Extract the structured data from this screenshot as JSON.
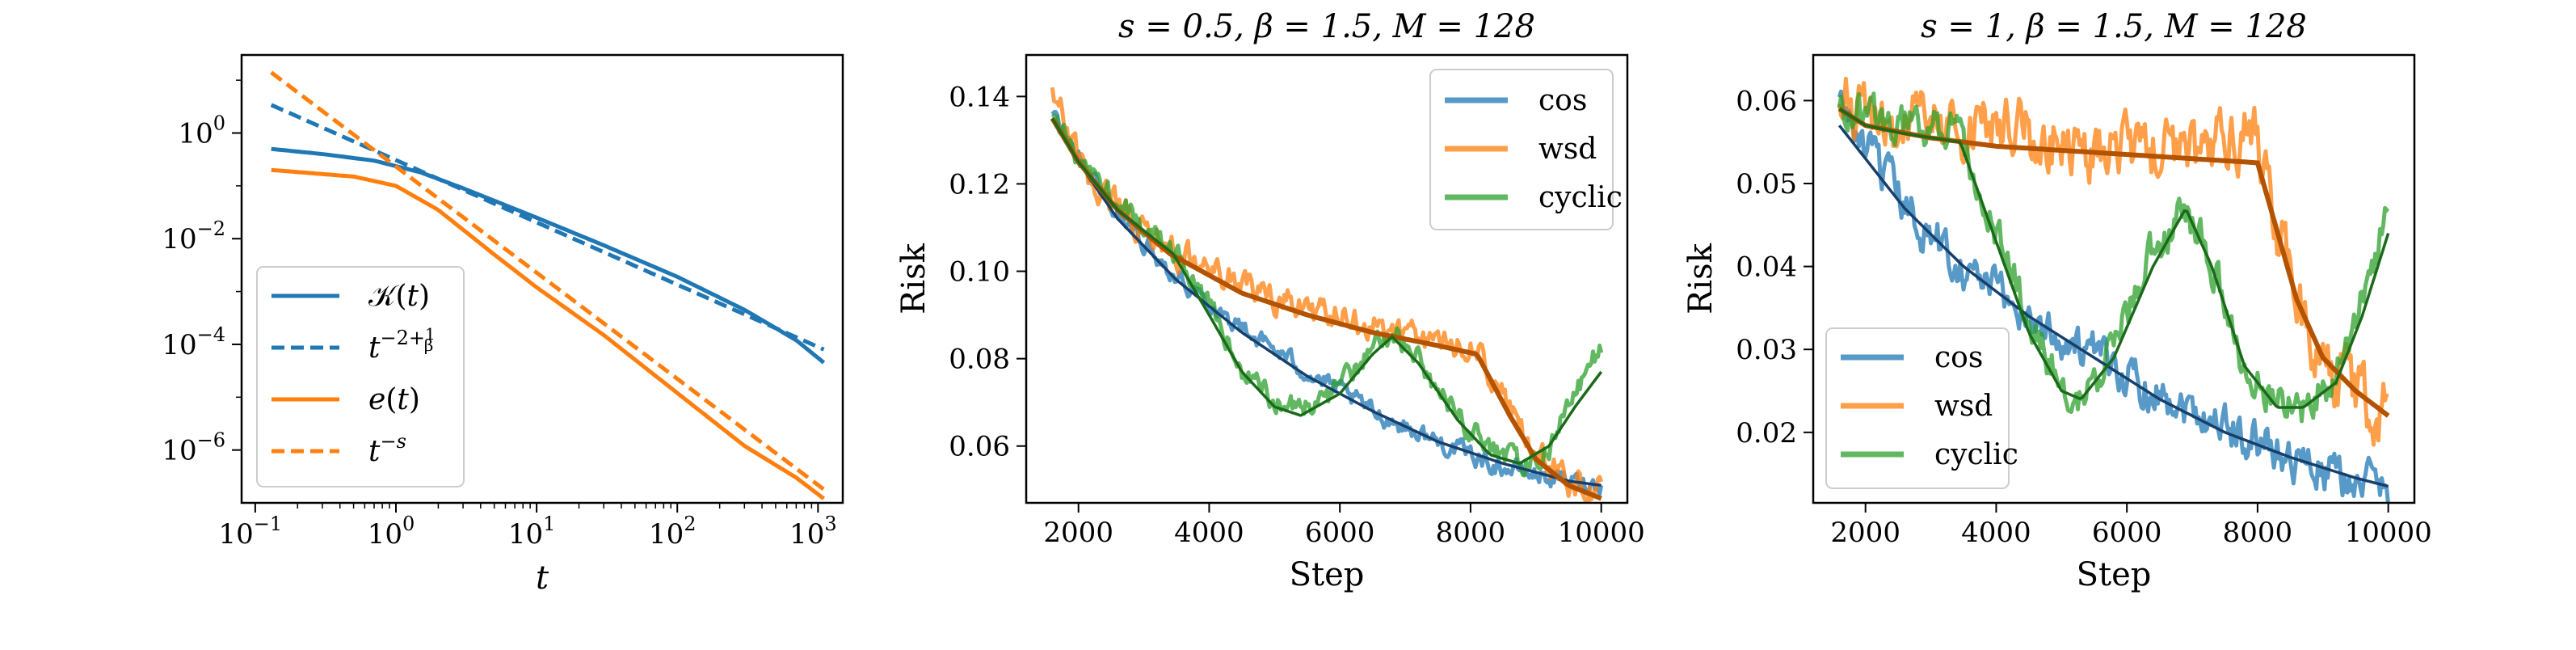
{
  "colors": {
    "blue": "#1f77b4",
    "orange": "#ff7f0e",
    "green": "#2ca02c",
    "blue_dark": "#173f6b",
    "orange_dark": "#b35300",
    "green_dark": "#1a6a1a"
  },
  "chart_data": [
    {
      "type": "line",
      "xscale": "log",
      "yscale": "log",
      "title": "",
      "xlabel": "t",
      "ylabel": "",
      "xlim": [
        0.08,
        1500
      ],
      "ylim": [
        1e-07,
        30
      ],
      "xticks": [
        {
          "base": "10",
          "exp": "−1"
        },
        {
          "base": "10",
          "exp": "0"
        },
        {
          "base": "10",
          "exp": "1"
        },
        {
          "base": "10",
          "exp": "2"
        },
        {
          "base": "10",
          "exp": "3"
        }
      ],
      "yticks": [
        {
          "base": "10",
          "exp": "0"
        },
        {
          "base": "10",
          "exp": "−2"
        },
        {
          "base": "10",
          "exp": "−4"
        },
        {
          "base": "10",
          "exp": "−6"
        }
      ],
      "legend_position": "bottom-left",
      "legend": [
        {
          "label": "𝒦(t)",
          "color": "#1f77b4",
          "dashed": false
        },
        {
          "label": "t^(−2+1/β)",
          "color": "#1f77b4",
          "dashed": true
        },
        {
          "label": "e(t)",
          "color": "#ff7f0e",
          "dashed": false
        },
        {
          "label": "t^(−s)",
          "color": "#ff7f0e",
          "dashed": true
        }
      ],
      "series": [
        {
          "name": "K(t)",
          "color": "#1f77b4",
          "dashed": false,
          "x": [
            0.13,
            0.3,
            0.7,
            1.5,
            3,
            10,
            30,
            100,
            300,
            700,
            1100
          ],
          "y": [
            0.5,
            0.4,
            0.3,
            0.18,
            0.09,
            0.025,
            0.0075,
            0.0019,
            0.00045,
            0.00012,
            4.5e-05
          ]
        },
        {
          "name": "t^(-2+1/beta)",
          "color": "#1f77b4",
          "dashed": true,
          "x": [
            0.13,
            1100
          ],
          "y": [
            3.4,
            8e-05
          ]
        },
        {
          "name": "e(t)",
          "color": "#ff7f0e",
          "dashed": false,
          "x": [
            0.13,
            0.5,
            1,
            2,
            5,
            10,
            30,
            100,
            300,
            700,
            1100
          ],
          "y": [
            0.2,
            0.15,
            0.1,
            0.035,
            0.005,
            0.0012,
            0.00015,
            1.2e-05,
            1.2e-06,
            3e-07,
            1.2e-07
          ]
        },
        {
          "name": "t^(-s)",
          "color": "#ff7f0e",
          "dashed": true,
          "x": [
            0.13,
            1100
          ],
          "y": [
            14,
            1.8e-07
          ]
        }
      ]
    },
    {
      "type": "line",
      "title": "s = 0.5, β = 1.5, M = 128",
      "xlabel": "Step",
      "ylabel": "Risk",
      "xlim": [
        1200,
        10400
      ],
      "ylim": [
        0.047,
        0.1495
      ],
      "xticks": [
        "2000",
        "4000",
        "6000",
        "8000",
        "10000"
      ],
      "yticks": [
        "0.06",
        "0.08",
        "0.10",
        "0.12",
        "0.14"
      ],
      "legend_position": "top-right",
      "legend": [
        "cos",
        "wsd",
        "cyclic"
      ],
      "series": [
        {
          "name": "cos",
          "color": "#1f77b4",
          "noise": 0.0018,
          "x": [
            1600,
            2000,
            2600,
            3500,
            4500,
            5500,
            6500,
            7500,
            8500,
            9500,
            10000
          ],
          "y": [
            0.136,
            0.126,
            0.113,
            0.099,
            0.087,
            0.077,
            0.068,
            0.061,
            0.055,
            0.052,
            0.051
          ]
        },
        {
          "name": "wsd",
          "color": "#ff7f0e",
          "noise": 0.0028,
          "x": [
            1600,
            2000,
            2600,
            3400,
            4500,
            5500,
            6500,
            7500,
            8100,
            8600,
            9000,
            9500,
            10000
          ],
          "y": [
            0.142,
            0.125,
            0.115,
            0.105,
            0.097,
            0.091,
            0.087,
            0.084,
            0.082,
            0.068,
            0.058,
            0.052,
            0.049
          ]
        },
        {
          "name": "cyclic",
          "color": "#2ca02c",
          "noise": 0.0022,
          "x": [
            1600,
            2000,
            2600,
            3450,
            4000,
            4500,
            5000,
            5400,
            6000,
            6500,
            6800,
            7200,
            7800,
            8300,
            8750,
            9200,
            9600,
            10000
          ],
          "y": [
            0.136,
            0.126,
            0.115,
            0.105,
            0.092,
            0.078,
            0.07,
            0.068,
            0.073,
            0.082,
            0.086,
            0.08,
            0.067,
            0.059,
            0.056,
            0.06,
            0.072,
            0.083
          ]
        }
      ],
      "fit_lines": [
        {
          "name": "cos-fit",
          "color": "#173f6b",
          "x": [
            1600,
            2000,
            2600,
            3500,
            4500,
            5500,
            6500,
            7500,
            8500,
            9500,
            10000
          ],
          "y": [
            0.135,
            0.125,
            0.112,
            0.098,
            0.086,
            0.076,
            0.068,
            0.061,
            0.056,
            0.052,
            0.051
          ]
        },
        {
          "name": "wsd-fit",
          "color": "#b35300",
          "x": [
            1600,
            2000,
            2600,
            3400,
            4500,
            5500,
            6500,
            7500,
            8100,
            8600,
            9000,
            9500,
            10000
          ],
          "y": [
            0.135,
            0.125,
            0.114,
            0.104,
            0.095,
            0.09,
            0.086,
            0.083,
            0.081,
            0.067,
            0.057,
            0.051,
            0.048
          ]
        },
        {
          "name": "cyclic-fit",
          "color": "#1a6a1a",
          "x": [
            1600,
            2000,
            2600,
            3450,
            4000,
            4500,
            5000,
            5400,
            6000,
            6500,
            6800,
            7200,
            7800,
            8300,
            8750,
            9200,
            9600,
            10000
          ],
          "y": [
            0.135,
            0.125,
            0.114,
            0.104,
            0.09,
            0.077,
            0.069,
            0.067,
            0.072,
            0.081,
            0.085,
            0.079,
            0.066,
            0.058,
            0.056,
            0.06,
            0.069,
            0.077
          ]
        }
      ]
    },
    {
      "type": "line",
      "title": "s = 1, β = 1.5, M = 128",
      "xlabel": "Step",
      "ylabel": "Risk",
      "xlim": [
        1200,
        10400
      ],
      "ylim": [
        0.0115,
        0.0655
      ],
      "xticks": [
        "2000",
        "4000",
        "6000",
        "8000",
        "10000"
      ],
      "yticks": [
        "0.02",
        "0.03",
        "0.04",
        "0.05",
        "0.06"
      ],
      "legend_position": "bottom-left",
      "legend": [
        "cos",
        "wsd",
        "cyclic"
      ],
      "series": [
        {
          "name": "cos",
          "color": "#1f77b4",
          "noise": 0.0022,
          "x": [
            1600,
            2000,
            2600,
            3500,
            4500,
            5500,
            6500,
            7500,
            8500,
            9500,
            10000
          ],
          "y": [
            0.06,
            0.054,
            0.047,
            0.04,
            0.034,
            0.029,
            0.025,
            0.021,
            0.017,
            0.014,
            0.0135
          ]
        },
        {
          "name": "wsd",
          "color": "#ff7f0e",
          "noise": 0.0032,
          "x": [
            1600,
            2000,
            3000,
            4000,
            5000,
            6000,
            7000,
            8000,
            8200,
            8600,
            9000,
            9500,
            10000
          ],
          "y": [
            0.06,
            0.058,
            0.056,
            0.056,
            0.055,
            0.054,
            0.053,
            0.056,
            0.047,
            0.036,
            0.029,
            0.025,
            0.022
          ]
        },
        {
          "name": "cyclic",
          "color": "#2ca02c",
          "noise": 0.002,
          "x": [
            1600,
            2000,
            2600,
            3450,
            4000,
            4500,
            5000,
            5300,
            5800,
            6400,
            6900,
            7300,
            7800,
            8300,
            8700,
            9200,
            9600,
            10000
          ],
          "y": [
            0.06,
            0.058,
            0.057,
            0.056,
            0.044,
            0.033,
            0.026,
            0.024,
            0.03,
            0.042,
            0.047,
            0.04,
            0.028,
            0.024,
            0.023,
            0.027,
            0.036,
            0.046
          ]
        }
      ],
      "fit_lines": [
        {
          "name": "cos-fit",
          "color": "#173f6b",
          "x": [
            1600,
            2000,
            2600,
            3500,
            4500,
            5500,
            6500,
            7500,
            8500,
            9500,
            10000
          ],
          "y": [
            0.057,
            0.053,
            0.047,
            0.04,
            0.034,
            0.029,
            0.024,
            0.02,
            0.017,
            0.0145,
            0.0135
          ]
        },
        {
          "name": "wsd-fit",
          "color": "#b35300",
          "x": [
            1600,
            2000,
            3000,
            4000,
            5000,
            6000,
            7000,
            8000,
            8200,
            8600,
            9000,
            9500,
            10000
          ],
          "y": [
            0.059,
            0.057,
            0.0555,
            0.0545,
            0.054,
            0.0535,
            0.053,
            0.0525,
            0.047,
            0.036,
            0.029,
            0.025,
            0.022
          ]
        },
        {
          "name": "cyclic-fit",
          "color": "#1a6a1a",
          "x": [
            1600,
            2000,
            2600,
            3450,
            4000,
            4500,
            5000,
            5300,
            5800,
            6400,
            6900,
            7300,
            7800,
            8300,
            8700,
            9200,
            9600,
            10000
          ],
          "y": [
            0.059,
            0.057,
            0.056,
            0.055,
            0.043,
            0.032,
            0.025,
            0.024,
            0.029,
            0.04,
            0.047,
            0.04,
            0.028,
            0.023,
            0.023,
            0.026,
            0.034,
            0.044
          ]
        }
      ]
    }
  ]
}
